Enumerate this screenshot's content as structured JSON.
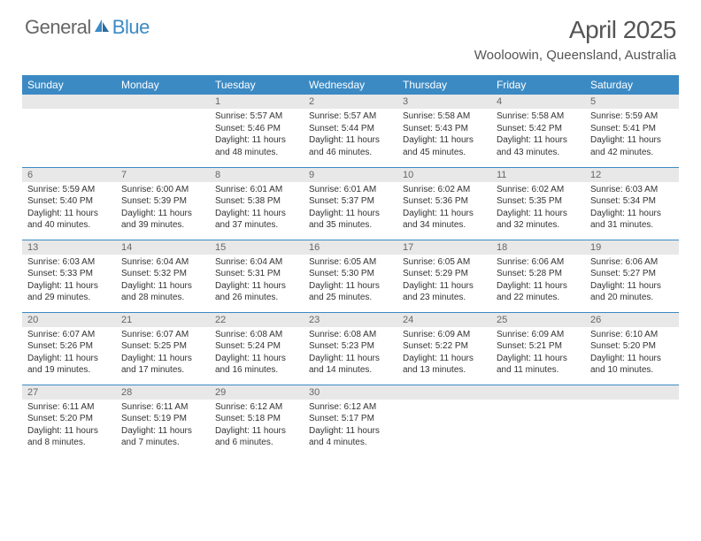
{
  "logo": {
    "text1": "General",
    "text2": "Blue",
    "color1": "#666666",
    "color2": "#3b8ac4"
  },
  "title": "April 2025",
  "location": "Wooloowin, Queensland, Australia",
  "colors": {
    "header_bg": "#3b8ac4",
    "header_fg": "#ffffff",
    "daynum_bg": "#e8e8e8",
    "daynum_fg": "#666666",
    "body_fg": "#333333",
    "rule": "#3b8ac4"
  },
  "day_headers": [
    "Sunday",
    "Monday",
    "Tuesday",
    "Wednesday",
    "Thursday",
    "Friday",
    "Saturday"
  ],
  "weeks": [
    [
      null,
      null,
      {
        "n": "1",
        "sr": "5:57 AM",
        "ss": "5:46 PM",
        "dl": "11 hours and 48 minutes."
      },
      {
        "n": "2",
        "sr": "5:57 AM",
        "ss": "5:44 PM",
        "dl": "11 hours and 46 minutes."
      },
      {
        "n": "3",
        "sr": "5:58 AM",
        "ss": "5:43 PM",
        "dl": "11 hours and 45 minutes."
      },
      {
        "n": "4",
        "sr": "5:58 AM",
        "ss": "5:42 PM",
        "dl": "11 hours and 43 minutes."
      },
      {
        "n": "5",
        "sr": "5:59 AM",
        "ss": "5:41 PM",
        "dl": "11 hours and 42 minutes."
      }
    ],
    [
      {
        "n": "6",
        "sr": "5:59 AM",
        "ss": "5:40 PM",
        "dl": "11 hours and 40 minutes."
      },
      {
        "n": "7",
        "sr": "6:00 AM",
        "ss": "5:39 PM",
        "dl": "11 hours and 39 minutes."
      },
      {
        "n": "8",
        "sr": "6:01 AM",
        "ss": "5:38 PM",
        "dl": "11 hours and 37 minutes."
      },
      {
        "n": "9",
        "sr": "6:01 AM",
        "ss": "5:37 PM",
        "dl": "11 hours and 35 minutes."
      },
      {
        "n": "10",
        "sr": "6:02 AM",
        "ss": "5:36 PM",
        "dl": "11 hours and 34 minutes."
      },
      {
        "n": "11",
        "sr": "6:02 AM",
        "ss": "5:35 PM",
        "dl": "11 hours and 32 minutes."
      },
      {
        "n": "12",
        "sr": "6:03 AM",
        "ss": "5:34 PM",
        "dl": "11 hours and 31 minutes."
      }
    ],
    [
      {
        "n": "13",
        "sr": "6:03 AM",
        "ss": "5:33 PM",
        "dl": "11 hours and 29 minutes."
      },
      {
        "n": "14",
        "sr": "6:04 AM",
        "ss": "5:32 PM",
        "dl": "11 hours and 28 minutes."
      },
      {
        "n": "15",
        "sr": "6:04 AM",
        "ss": "5:31 PM",
        "dl": "11 hours and 26 minutes."
      },
      {
        "n": "16",
        "sr": "6:05 AM",
        "ss": "5:30 PM",
        "dl": "11 hours and 25 minutes."
      },
      {
        "n": "17",
        "sr": "6:05 AM",
        "ss": "5:29 PM",
        "dl": "11 hours and 23 minutes."
      },
      {
        "n": "18",
        "sr": "6:06 AM",
        "ss": "5:28 PM",
        "dl": "11 hours and 22 minutes."
      },
      {
        "n": "19",
        "sr": "6:06 AM",
        "ss": "5:27 PM",
        "dl": "11 hours and 20 minutes."
      }
    ],
    [
      {
        "n": "20",
        "sr": "6:07 AM",
        "ss": "5:26 PM",
        "dl": "11 hours and 19 minutes."
      },
      {
        "n": "21",
        "sr": "6:07 AM",
        "ss": "5:25 PM",
        "dl": "11 hours and 17 minutes."
      },
      {
        "n": "22",
        "sr": "6:08 AM",
        "ss": "5:24 PM",
        "dl": "11 hours and 16 minutes."
      },
      {
        "n": "23",
        "sr": "6:08 AM",
        "ss": "5:23 PM",
        "dl": "11 hours and 14 minutes."
      },
      {
        "n": "24",
        "sr": "6:09 AM",
        "ss": "5:22 PM",
        "dl": "11 hours and 13 minutes."
      },
      {
        "n": "25",
        "sr": "6:09 AM",
        "ss": "5:21 PM",
        "dl": "11 hours and 11 minutes."
      },
      {
        "n": "26",
        "sr": "6:10 AM",
        "ss": "5:20 PM",
        "dl": "11 hours and 10 minutes."
      }
    ],
    [
      {
        "n": "27",
        "sr": "6:11 AM",
        "ss": "5:20 PM",
        "dl": "11 hours and 8 minutes."
      },
      {
        "n": "28",
        "sr": "6:11 AM",
        "ss": "5:19 PM",
        "dl": "11 hours and 7 minutes."
      },
      {
        "n": "29",
        "sr": "6:12 AM",
        "ss": "5:18 PM",
        "dl": "11 hours and 6 minutes."
      },
      {
        "n": "30",
        "sr": "6:12 AM",
        "ss": "5:17 PM",
        "dl": "11 hours and 4 minutes."
      },
      null,
      null,
      null
    ]
  ],
  "labels": {
    "sunrise": "Sunrise: ",
    "sunset": "Sunset: ",
    "daylight": "Daylight: "
  }
}
